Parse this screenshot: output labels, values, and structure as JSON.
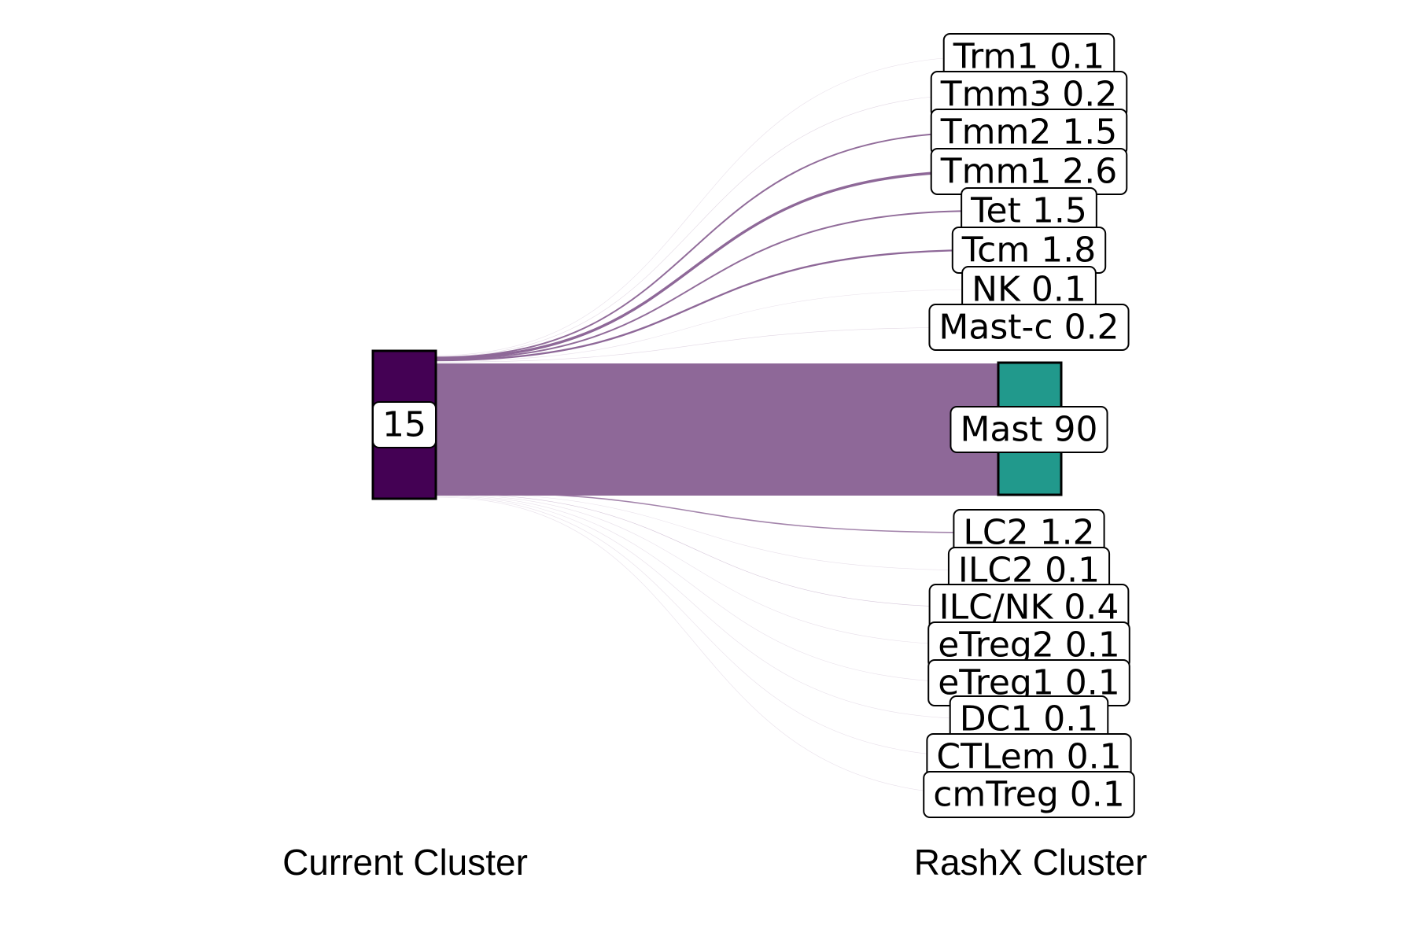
{
  "chart_data": {
    "type": "sankey",
    "axis_labels": [
      "Current Cluster",
      "RashX Cluster"
    ],
    "colors": {
      "source_node": "#440154",
      "target_node": "#21998c",
      "flow": "#8e6898"
    },
    "source": {
      "name": "15",
      "value": 100
    },
    "targets": [
      {
        "name": "Trm1",
        "value": 0.1
      },
      {
        "name": "Tmm3",
        "value": 0.2
      },
      {
        "name": "Tmm2",
        "value": 1.5
      },
      {
        "name": "Tmm1",
        "value": 2.6
      },
      {
        "name": "Tet",
        "value": 1.5
      },
      {
        "name": "Tcm",
        "value": 1.8
      },
      {
        "name": "NK",
        "value": 0.1
      },
      {
        "name": "Mast-c",
        "value": 0.2
      },
      {
        "name": "Mast",
        "value": 90
      },
      {
        "name": "LC2",
        "value": 1.2
      },
      {
        "name": "ILC2",
        "value": 0.1
      },
      {
        "name": "ILC/NK",
        "value": 0.4
      },
      {
        "name": "eTreg2",
        "value": 0.1
      },
      {
        "name": "eTreg1",
        "value": 0.1
      },
      {
        "name": "DC1",
        "value": 0.1
      },
      {
        "name": "CTLem",
        "value": 0.1
      },
      {
        "name": "cmTreg",
        "value": 0.1
      }
    ]
  }
}
